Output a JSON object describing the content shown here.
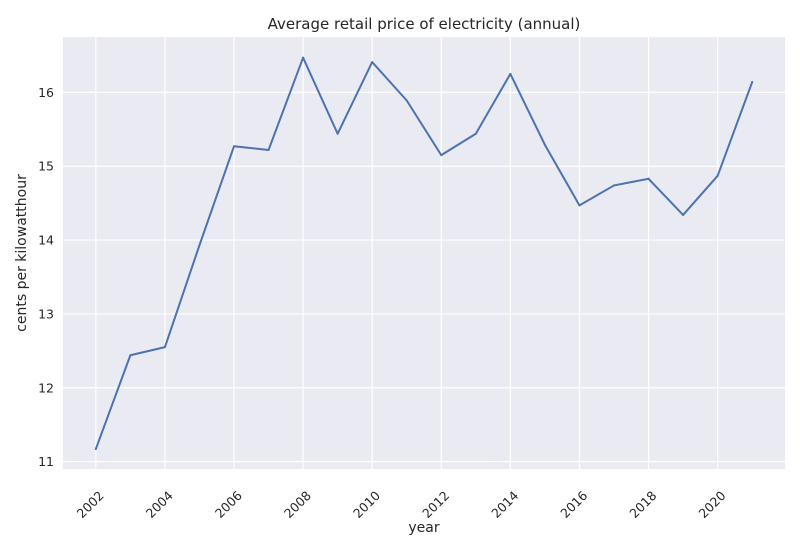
{
  "chart_data": {
    "type": "line",
    "title": "Average retail price of electricity (annual)",
    "xlabel": "year",
    "ylabel": "cents per kilowatthour",
    "x": [
      2002,
      2003,
      2004,
      2005,
      2006,
      2007,
      2008,
      2009,
      2010,
      2011,
      2012,
      2013,
      2014,
      2015,
      2016,
      2017,
      2018,
      2019,
      2020,
      2021
    ],
    "series": [
      {
        "values": [
          11.17,
          12.44,
          12.55,
          13.93,
          15.27,
          15.22,
          16.47,
          15.44,
          16.41,
          15.89,
          15.15,
          15.44,
          16.25,
          15.29,
          14.47,
          14.74,
          14.83,
          14.34,
          14.87,
          16.14
        ],
        "color": "#4c72b0"
      }
    ],
    "xticks": [
      "2002",
      "2004",
      "2006",
      "2008",
      "2010",
      "2012",
      "2014",
      "2016",
      "2018",
      "2020"
    ],
    "yticks": [
      "11",
      "12",
      "13",
      "14",
      "15",
      "16"
    ],
    "xlim": [
      2001.05,
      2021.95
    ],
    "ylim": [
      10.9,
      16.75
    ],
    "grid": true,
    "background_color": "#eaeaf2",
    "grid_color": "#ffffff"
  }
}
